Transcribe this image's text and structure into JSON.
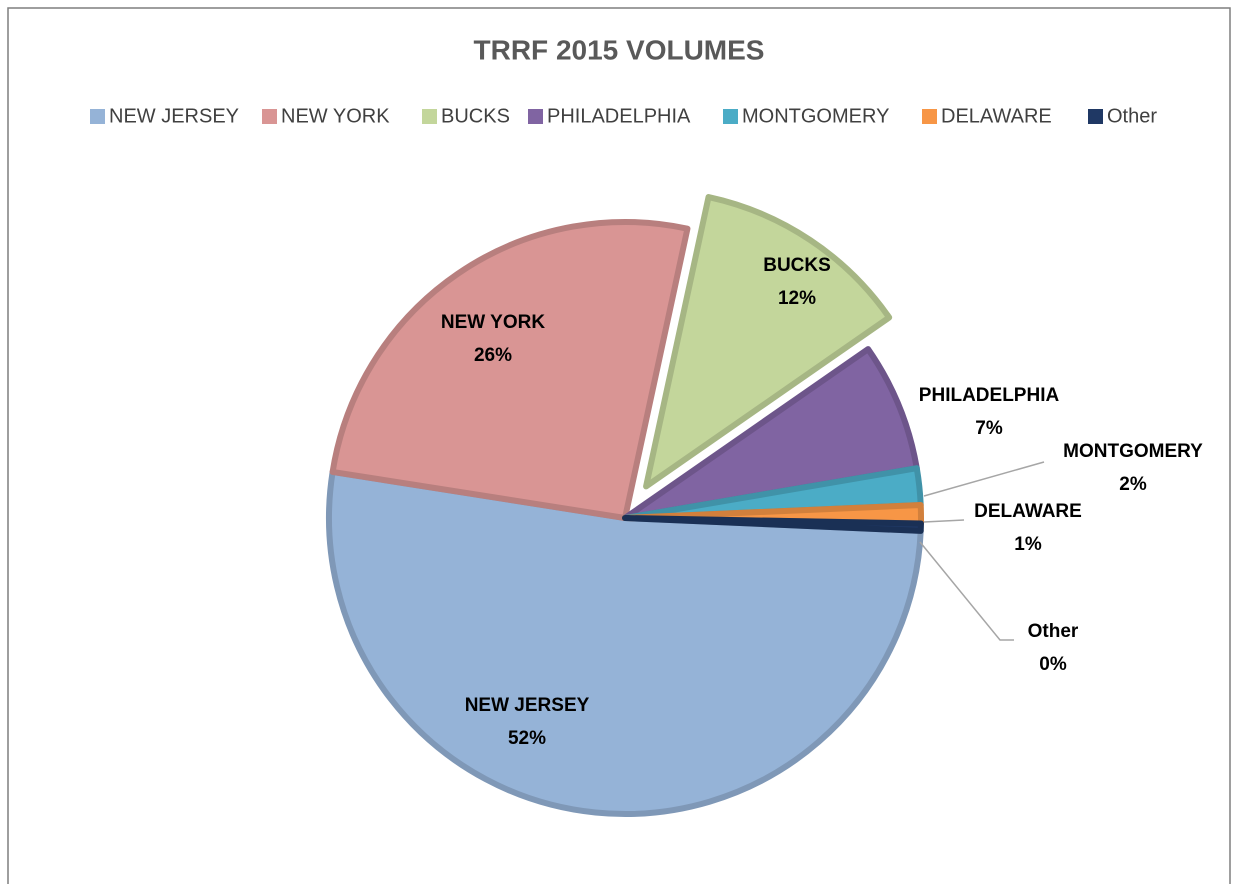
{
  "chart_data": {
    "type": "pie",
    "title": "TRRF 2015 VOLUMES",
    "categories": [
      "NEW JERSEY",
      "NEW YORK",
      "BUCKS",
      "PHILADELPHIA",
      "MONTGOMERY",
      "DELAWARE",
      "Other"
    ],
    "values": [
      52,
      26,
      12,
      7,
      2,
      1,
      0.4
    ],
    "value_labels": [
      "52%",
      "26%",
      "12%",
      "7%",
      "2%",
      "1%",
      "0%"
    ],
    "colors": [
      "#95b3d7",
      "#d99594",
      "#c3d69b",
      "#8064a2",
      "#4bacc6",
      "#f79646",
      "#1f3864"
    ],
    "legend": "top"
  }
}
